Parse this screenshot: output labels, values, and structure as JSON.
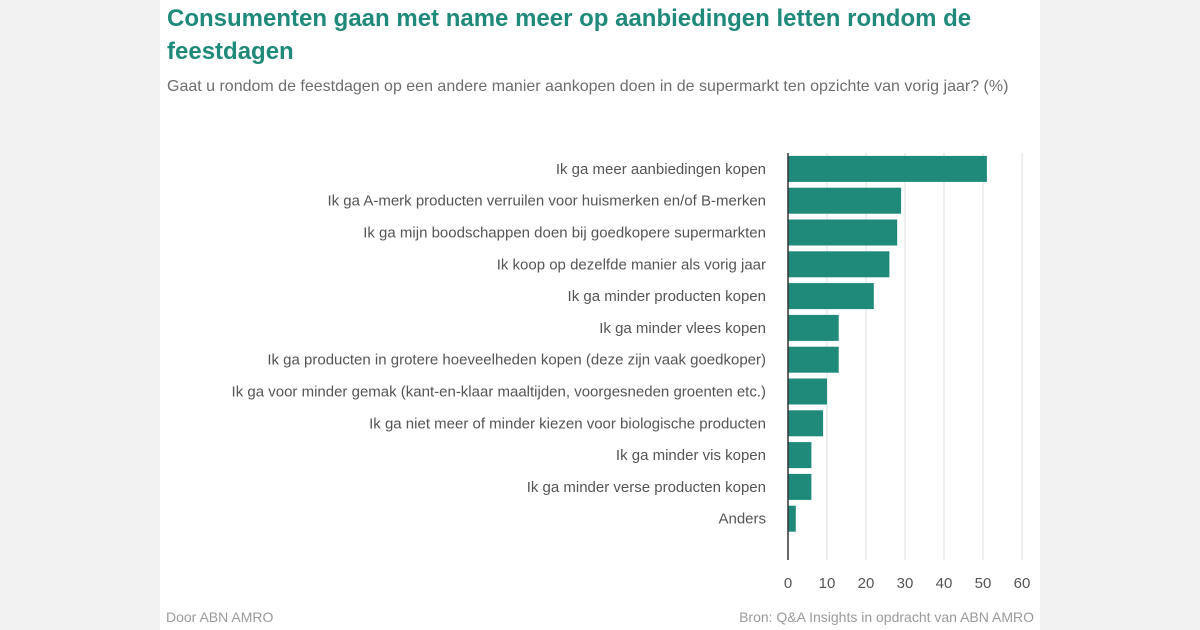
{
  "header": {
    "title": "Consumenten gaan met name meer op aanbiedingen letten rondom de feestdagen",
    "subtitle": "Gaat u rondom de feestdagen op een andere manier aankopen doen in de supermarkt ten opzichte van vorig jaar? (%)"
  },
  "footer": {
    "left": "Door ABN AMRO",
    "right": "Bron: Q&A Insights in opdracht van ABN AMRO"
  },
  "colors": {
    "bar": "#1f8a7a",
    "title": "#1f8a7a",
    "grid": "#dcdcdc",
    "axis": "#333333",
    "label": "#555555"
  },
  "chart_data": {
    "type": "bar",
    "orientation": "horizontal",
    "categories": [
      "Ik ga meer aanbiedingen kopen",
      "Ik ga A-merk producten verruilen voor huismerken en/of B-merken",
      "Ik ga mijn boodschappen doen bij goedkopere supermarkten",
      "Ik koop op dezelfde manier als vorig jaar",
      "Ik ga minder producten kopen",
      "Ik ga minder vlees kopen",
      "Ik ga producten in grotere hoeveelheden kopen (deze zijn vaak goedkoper)",
      "Ik ga voor minder gemak (kant-en-klaar maaltijden, voorgesneden groenten etc.)",
      "Ik ga niet meer of minder kiezen voor biologische producten",
      "Ik ga minder vis kopen",
      "Ik ga minder verse producten kopen",
      "Anders"
    ],
    "values": [
      51,
      29,
      28,
      26,
      22,
      13,
      13,
      10,
      9,
      6,
      6,
      2
    ],
    "xlim": [
      0,
      60
    ],
    "ticks": [
      "0",
      "10",
      "20",
      "30",
      "40",
      "50",
      "60"
    ],
    "grid": true,
    "xlabel": "",
    "ylabel": ""
  }
}
